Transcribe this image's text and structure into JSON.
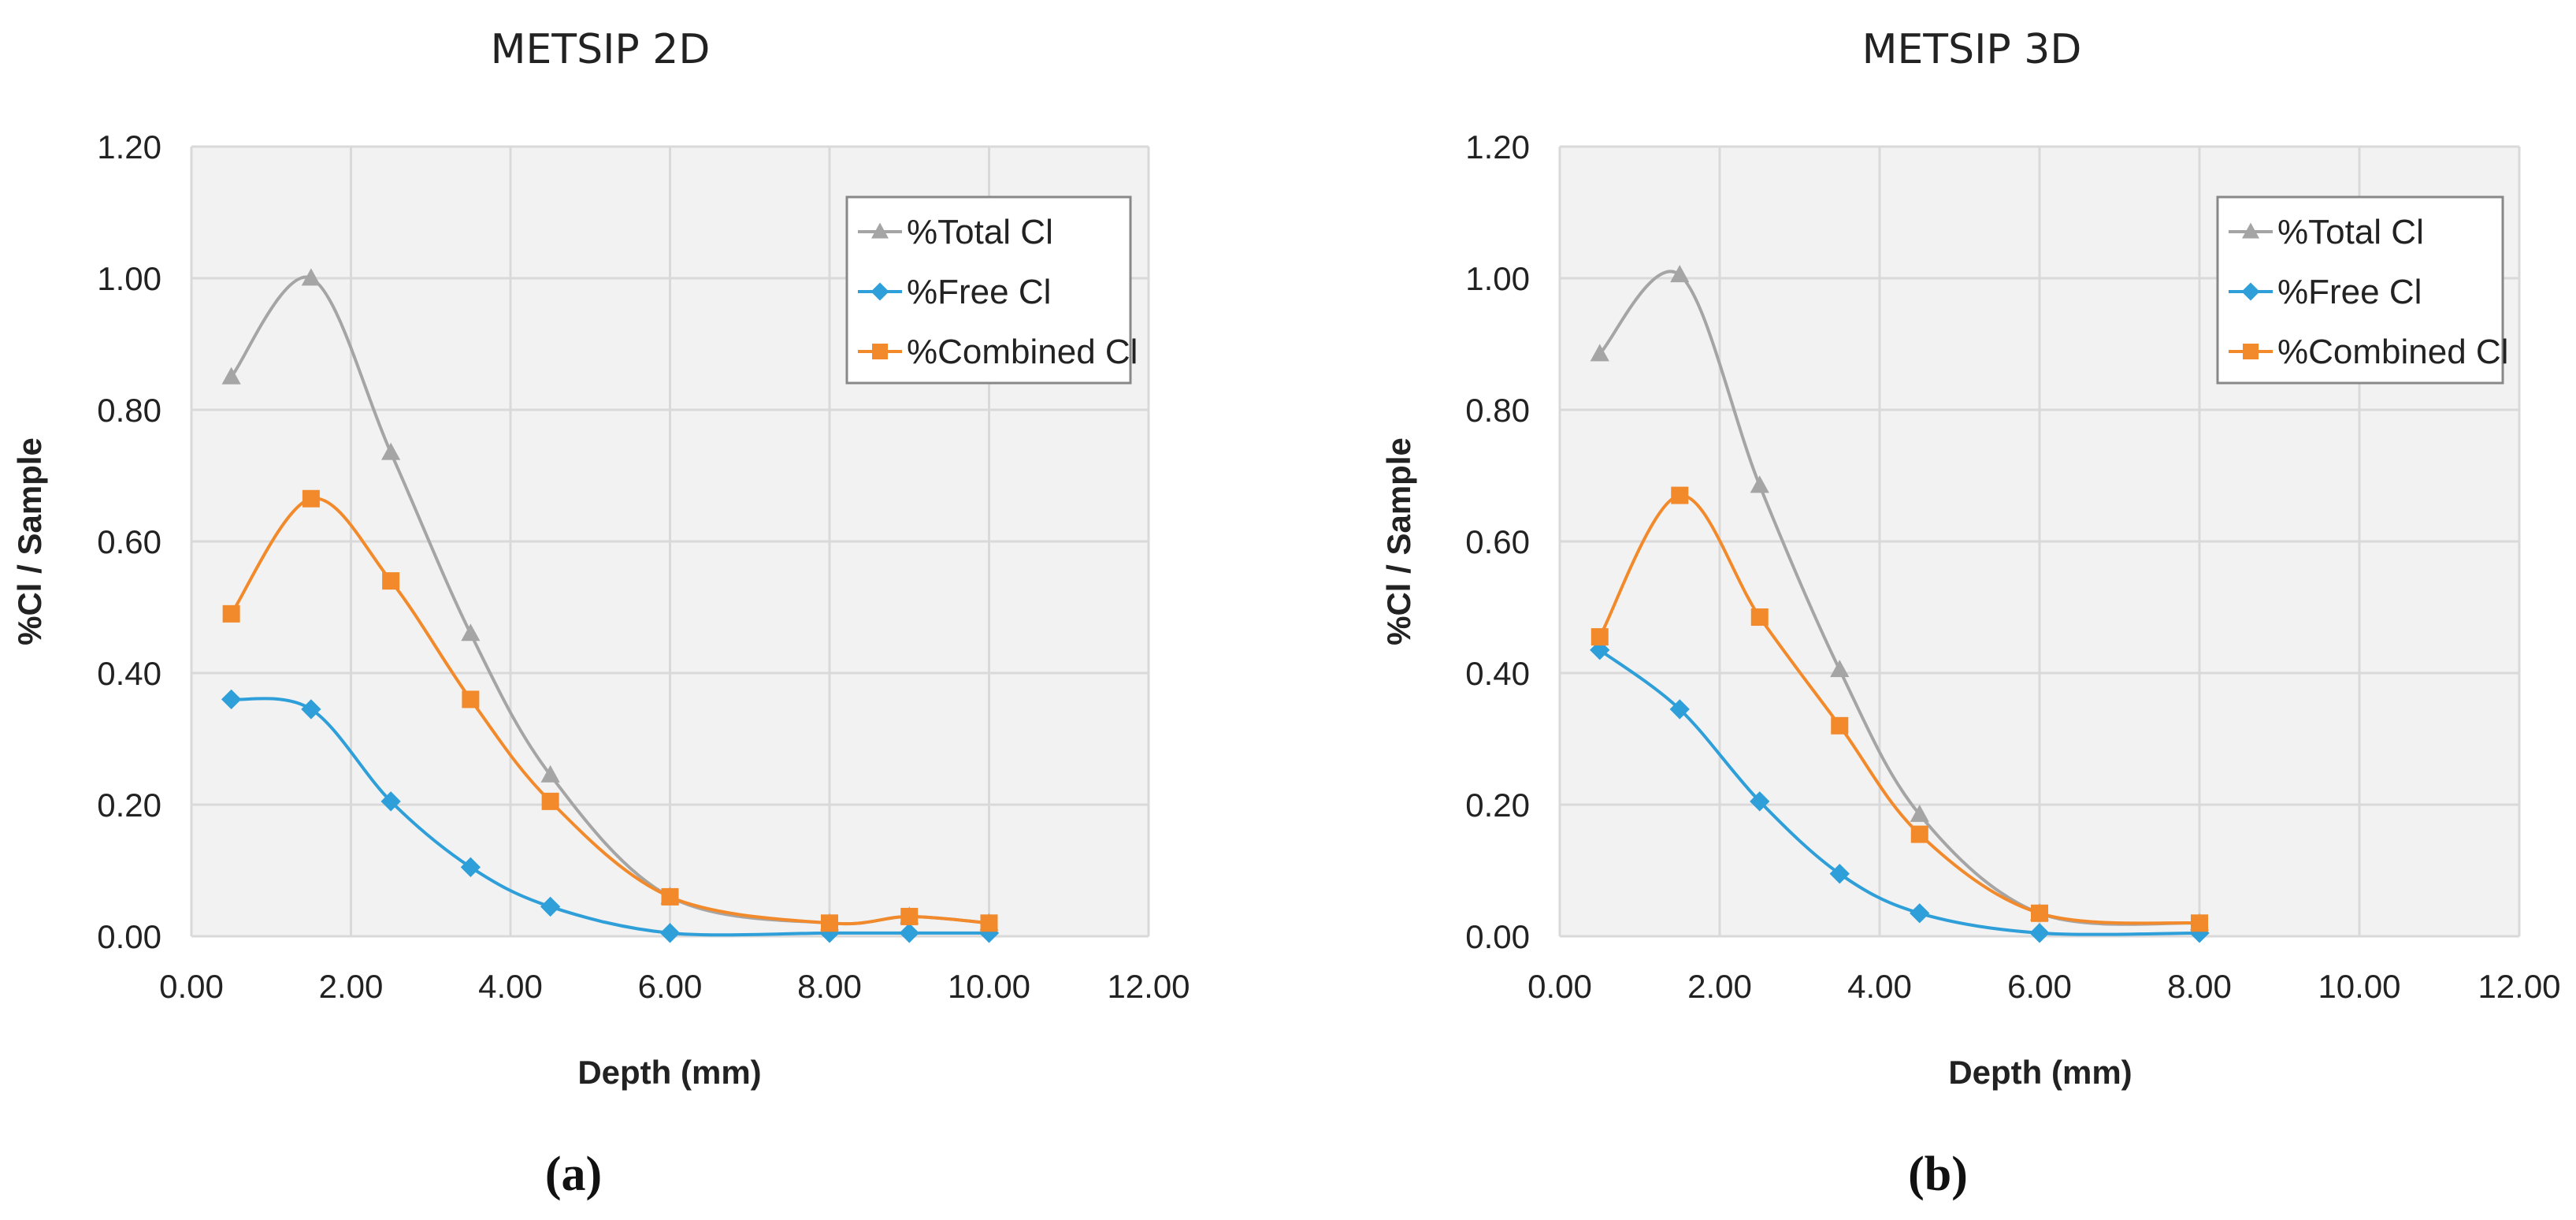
{
  "colors": {
    "total": "#a5a5a5",
    "free": "#2e9fd9",
    "combined": "#f28a2b",
    "plot_bg": "#f2f2f2",
    "grid": "#d9d9d9"
  },
  "chart_data": [
    {
      "type": "line",
      "title": "METSIP 2D",
      "panel_label": "(a)",
      "xlabel": "Depth (mm)",
      "ylabel": "%Cl / Sample",
      "xlim": [
        0,
        12
      ],
      "ylim": [
        0,
        1.2
      ],
      "x_ticks": [
        "0.00",
        "2.00",
        "4.00",
        "6.00",
        "8.00",
        "10.00",
        "12.00"
      ],
      "y_ticks": [
        "0.00",
        "0.20",
        "0.40",
        "0.60",
        "0.80",
        "1.00",
        "1.20"
      ],
      "series": [
        {
          "name": "%Total Cl",
          "key": "total",
          "marker": "triangle",
          "x": [
            0.5,
            1.5,
            2.5,
            3.5,
            4.5,
            6.0,
            8.0,
            9.0,
            10.0
          ],
          "y": [
            0.85,
            1.0,
            0.735,
            0.46,
            0.245,
            0.06,
            0.02,
            0.03,
            0.02
          ]
        },
        {
          "name": "%Free Cl",
          "key": "free",
          "marker": "diamond",
          "x": [
            0.5,
            1.5,
            2.5,
            3.5,
            4.5,
            6.0,
            8.0,
            9.0,
            10.0
          ],
          "y": [
            0.36,
            0.345,
            0.205,
            0.105,
            0.045,
            0.005,
            0.005,
            0.005,
            0.005
          ]
        },
        {
          "name": "%Combined Cl",
          "key": "combined",
          "marker": "square",
          "x": [
            0.5,
            1.5,
            2.5,
            3.5,
            4.5,
            6.0,
            8.0,
            9.0,
            10.0
          ],
          "y": [
            0.49,
            0.665,
            0.54,
            0.36,
            0.205,
            0.06,
            0.02,
            0.03,
            0.02
          ]
        }
      ]
    },
    {
      "type": "line",
      "title": "METSIP 3D",
      "panel_label": "(b)",
      "xlabel": "Depth (mm)",
      "ylabel": "%Cl / Sample",
      "xlim": [
        0,
        12
      ],
      "ylim": [
        0,
        1.2
      ],
      "x_ticks": [
        "0.00",
        "2.00",
        "4.00",
        "6.00",
        "8.00",
        "10.00",
        "12.00"
      ],
      "y_ticks": [
        "0.00",
        "0.20",
        "0.40",
        "0.60",
        "0.80",
        "1.00",
        "1.20"
      ],
      "series": [
        {
          "name": "%Total Cl",
          "key": "total",
          "marker": "triangle",
          "x": [
            0.5,
            1.5,
            2.5,
            3.5,
            4.5,
            6.0,
            8.0
          ],
          "y": [
            0.885,
            1.005,
            0.685,
            0.405,
            0.185,
            0.035,
            0.02
          ]
        },
        {
          "name": "%Free Cl",
          "key": "free",
          "marker": "diamond",
          "x": [
            0.5,
            1.5,
            2.5,
            3.5,
            4.5,
            6.0,
            8.0
          ],
          "y": [
            0.435,
            0.345,
            0.205,
            0.095,
            0.035,
            0.005,
            0.005
          ]
        },
        {
          "name": "%Combined Cl",
          "key": "combined",
          "marker": "square",
          "x": [
            0.5,
            1.5,
            2.5,
            3.5,
            4.5,
            6.0,
            8.0
          ],
          "y": [
            0.455,
            0.67,
            0.485,
            0.32,
            0.155,
            0.035,
            0.02
          ]
        }
      ]
    }
  ]
}
